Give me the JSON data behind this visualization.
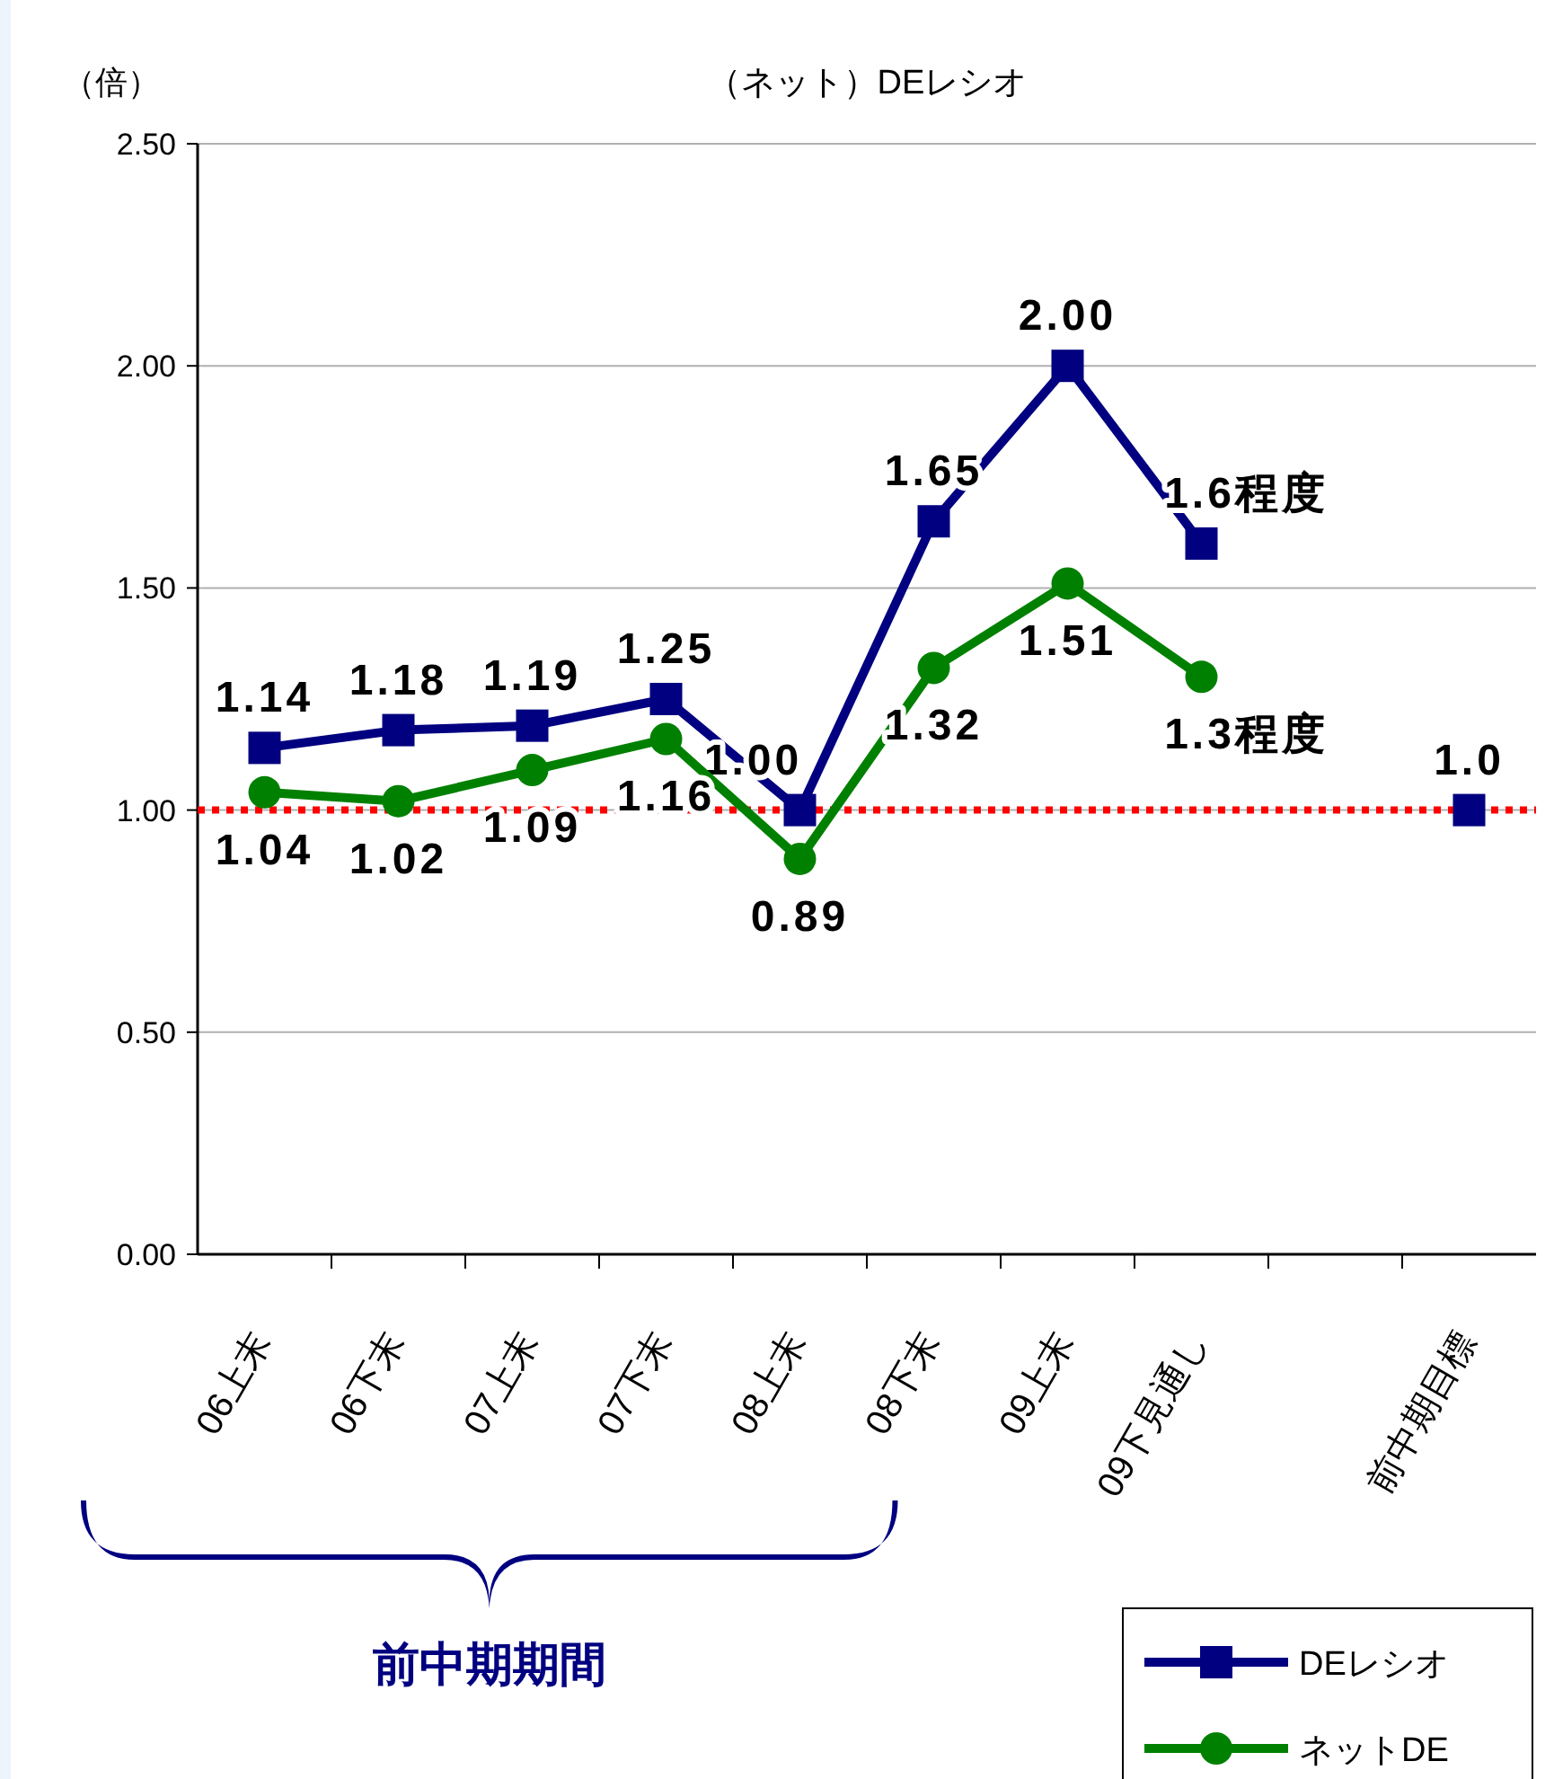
{
  "chart_data": {
    "type": "line",
    "title": "（ネット）DEレシオ",
    "ylabel": "（倍）",
    "categories": [
      "06上末",
      "06下末",
      "07上末",
      "07下末",
      "08上末",
      "08下末",
      "09上末",
      "09下見通し",
      null,
      "前中期目標"
    ],
    "series": [
      {
        "name": "DEレシオ",
        "color": "#000080",
        "marker": "square",
        "values": [
          1.14,
          1.18,
          1.19,
          1.25,
          1.0,
          1.65,
          2.0,
          1.6,
          null,
          1.0
        ],
        "value_labels": [
          "1.14",
          "1.18",
          "1.19",
          "1.25",
          "1.00",
          "1.65",
          "2.00",
          "1.6程度",
          null,
          "1.0"
        ]
      },
      {
        "name": "ネットDE",
        "color": "#008000",
        "marker": "circle",
        "values": [
          1.04,
          1.02,
          1.09,
          1.16,
          0.89,
          1.32,
          1.51,
          1.3,
          null,
          null
        ],
        "value_labels": [
          "1.04",
          "1.02",
          "1.09",
          "1.16",
          "0.89",
          "1.32",
          "1.51",
          "1.3程度",
          null,
          null
        ]
      }
    ],
    "ylim": [
      0,
      2.5
    ],
    "yticks": [
      {
        "value": 0,
        "label": "0.00"
      },
      {
        "value": 0.5,
        "label": "0.50"
      },
      {
        "value": 1,
        "label": "1.00"
      },
      {
        "value": 1.5,
        "label": "1.50"
      },
      {
        "value": 2,
        "label": "2.00"
      },
      {
        "value": 2.5,
        "label": "2.50"
      }
    ],
    "grid": "y",
    "legend": "bottom right",
    "ref_lines": [
      {
        "axis": "y",
        "value": 1,
        "color": "#ff0000",
        "line_style": "dotted"
      }
    ],
    "annotations": [
      "前中期期間"
    ]
  }
}
